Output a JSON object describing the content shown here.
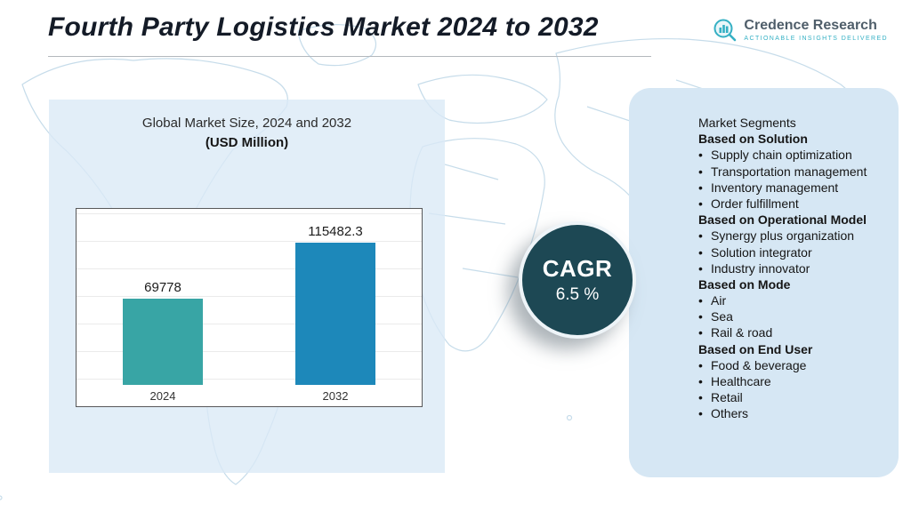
{
  "header": {
    "title": "Fourth Party Logistics Market 2024 to 2032",
    "logo": {
      "name": "Credence Research",
      "tagline": "Actionable Insights Delivered"
    }
  },
  "chart_panel": {
    "title_line1": "Global Market Size, 2024 and 2032",
    "title_line2": "(USD Million)"
  },
  "chart_data": {
    "type": "bar",
    "title": "Global Market Size, 2024 and 2032 (USD Million)",
    "categories": [
      "2024",
      "2032"
    ],
    "values": [
      69778,
      115482.3
    ],
    "value_labels": [
      "69778",
      "115482.3"
    ],
    "bar_colors": [
      "#38a5a5",
      "#1d88ba"
    ],
    "xlabel": "",
    "ylabel": "",
    "ylim": [
      0,
      120000
    ],
    "grid": true,
    "legend": "none"
  },
  "cagr_badge": {
    "label": "CAGR",
    "value": "6.5 %"
  },
  "segments_panel": {
    "heading": "Market Segments",
    "groups": [
      {
        "title": "Based on Solution",
        "items": [
          "Supply chain optimization",
          "Transportation management",
          "Inventory management",
          "Order fulfillment"
        ]
      },
      {
        "title": "Based on Operational Model",
        "items": [
          "Synergy plus organization",
          "Solution integrator",
          "Industry innovator"
        ]
      },
      {
        "title": "Based on Mode",
        "items": [
          "Air",
          "Sea",
          "Rail & road"
        ]
      },
      {
        "title": "Based on End User",
        "items": [
          "Food & beverage",
          "Healthcare",
          "Retail",
          "Others"
        ]
      }
    ]
  },
  "colors": {
    "accent_teal": "#38a5a5",
    "accent_blue": "#1d88ba",
    "cagr_circle": "#1d4854",
    "panel_blue": "#d6e7f4",
    "logo_teal": "#35b0c4"
  }
}
